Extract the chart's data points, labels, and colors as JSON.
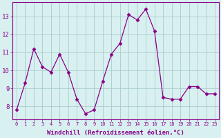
{
  "x": [
    0,
    1,
    2,
    3,
    4,
    5,
    6,
    7,
    8,
    9,
    10,
    11,
    12,
    13,
    14,
    15,
    16,
    17,
    18,
    19,
    20,
    21,
    22,
    23
  ],
  "y": [
    7.8,
    9.3,
    11.2,
    10.2,
    9.9,
    10.9,
    9.9,
    8.4,
    7.6,
    7.8,
    9.4,
    10.9,
    11.5,
    13.1,
    12.8,
    13.4,
    12.2,
    8.5,
    8.4,
    8.4,
    9.1,
    9.1,
    8.7,
    8.7
  ],
  "line_color": "#880088",
  "marker": "D",
  "marker_size": 2.5,
  "bg_color": "#d8f0f0",
  "grid_color": "#aacccc",
  "ylabel_ticks": [
    8,
    9,
    10,
    11,
    12,
    13
  ],
  "xlabel": "Windchill (Refroidissement éolien,°C)",
  "xlabel_fontsize": 6.5,
  "xtick_fontsize": 5.0,
  "ytick_fontsize": 6.5,
  "ylim": [
    7.3,
    13.8
  ],
  "xlim": [
    -0.5,
    23.5
  ]
}
